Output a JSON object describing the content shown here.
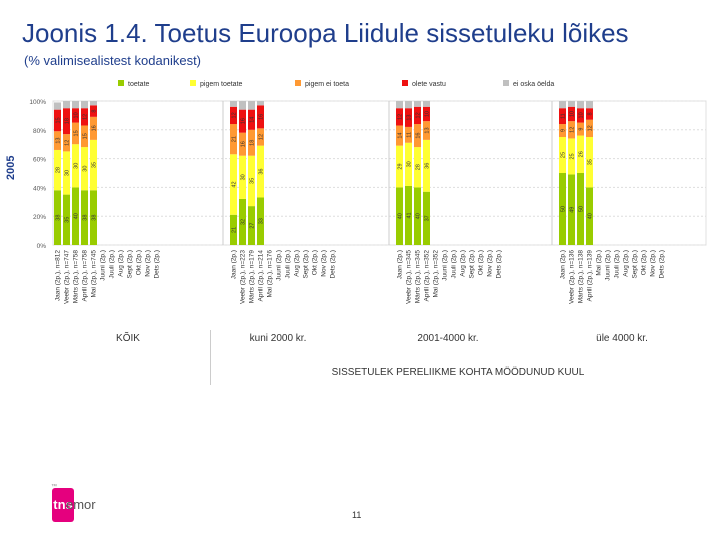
{
  "header": {
    "title": "Joonis 1.4. Toetus Euroopa Liidule sissetuleku lõikes",
    "subtitle": "(% valimisealistest kodanikest)",
    "year": "2005"
  },
  "footer": {
    "page_number": "11",
    "logo_text": "tns",
    "logo_word": "emor",
    "logo_mark": "™"
  },
  "chart_data": {
    "type": "bar",
    "stacked": true,
    "y_axis": {
      "ticks": [
        "0%",
        "20%",
        "40%",
        "60%",
        "80%",
        "100%"
      ],
      "ylim": [
        0,
        100
      ],
      "grid": true
    },
    "legend": {
      "placement": "top",
      "entries": [
        {
          "name": "toetate",
          "color": "#99cc00"
        },
        {
          "name": "pigem toetate",
          "color": "#ffff33"
        },
        {
          "name": "pigem ei toeta",
          "color": "#ff9933"
        },
        {
          "name": "olete vastu",
          "color": "#ee1111"
        },
        {
          "name": "ei oska öelda",
          "color": "#c0c0c0"
        }
      ]
    },
    "axis_title": "SISSETULEK PERELIIKME KOHTA MÖÖDUNUD KUUL",
    "groups": [
      {
        "name": "KÕIK",
        "categories": [
          "Jaan (2p.), n=812",
          "Veebr (2p.), n=747",
          "Märts (2p.), n=758",
          "Aprill (2p.), n=758",
          "Mai (2p.), n=745",
          "Juuni (2p.)",
          "Juuli (2p.)",
          "Aug (2p.)",
          "Sept (2p.)",
          "Okt (2p.)",
          "Nov (2p.)",
          "Dets (2p.)"
        ],
        "stacks": [
          [
            38,
            28,
            13,
            15,
            5
          ],
          [
            35,
            30,
            12,
            18,
            5
          ],
          [
            40,
            30,
            15,
            10,
            5
          ],
          [
            38,
            30,
            15,
            12,
            5
          ],
          [
            38,
            35,
            16,
            8,
            3
          ]
        ]
      },
      {
        "name": "kuni 2000 kr.",
        "categories": [
          "Jaan (2p.)",
          "Veebr (2p.), n=223",
          "Märts (2p.), n=179",
          "Aprill (2p.), n=214",
          "Mai (2p.), n=176",
          "Juuni (2p.)",
          "Juuli (2p.)",
          "Aug (2p.)",
          "Sept (2p.)",
          "Okt (2p.)",
          "Nov (2p.)",
          "Dets (2p.)"
        ],
        "stacks": [
          [
            21,
            42,
            21,
            12,
            4
          ],
          [
            32,
            30,
            16,
            16,
            6
          ],
          [
            27,
            35,
            18,
            14,
            6
          ],
          [
            33,
            36,
            12,
            16,
            3
          ]
        ]
      },
      {
        "name": "2001-4000 kr.",
        "categories": [
          "Jaan (2p.)",
          "Veebr (2p.), n=345",
          "Märts (2p.), n=345",
          "Aprill (2p.), n=352",
          "Mai (2p.), n=352",
          "Juuni (2p.)",
          "Juuli (2p.)",
          "Aug (2p.)",
          "Sept (2p.)",
          "Okt (2p.)",
          "Nov (2p.)",
          "Dets (2p.)"
        ],
        "stacks": [
          [
            40,
            29,
            14,
            12,
            5
          ],
          [
            41,
            30,
            11,
            13,
            5
          ],
          [
            40,
            28,
            16,
            12,
            4
          ],
          [
            37,
            36,
            13,
            10,
            4
          ]
        ]
      },
      {
        "name": "üle 4000 kr.",
        "categories": [
          "Jaan (2p.)",
          "Veebr (2p.), n=136",
          "Märts (2p.), n=138",
          "Aprill (2p.), n=139",
          "Mai (2p.)",
          "Juuni (2p.)",
          "Juuli (2p.)",
          "Aug (2p.)",
          "Sept (2p.)",
          "Okt (2p.)",
          "Nov (2p.)",
          "Dets (2p.)"
        ],
        "stacks": [
          [
            50,
            25,
            9,
            11,
            5
          ],
          [
            49,
            25,
            12,
            10,
            4
          ],
          [
            50,
            26,
            9,
            10,
            5
          ],
          [
            40,
            35,
            12,
            8,
            5
          ]
        ]
      }
    ]
  }
}
